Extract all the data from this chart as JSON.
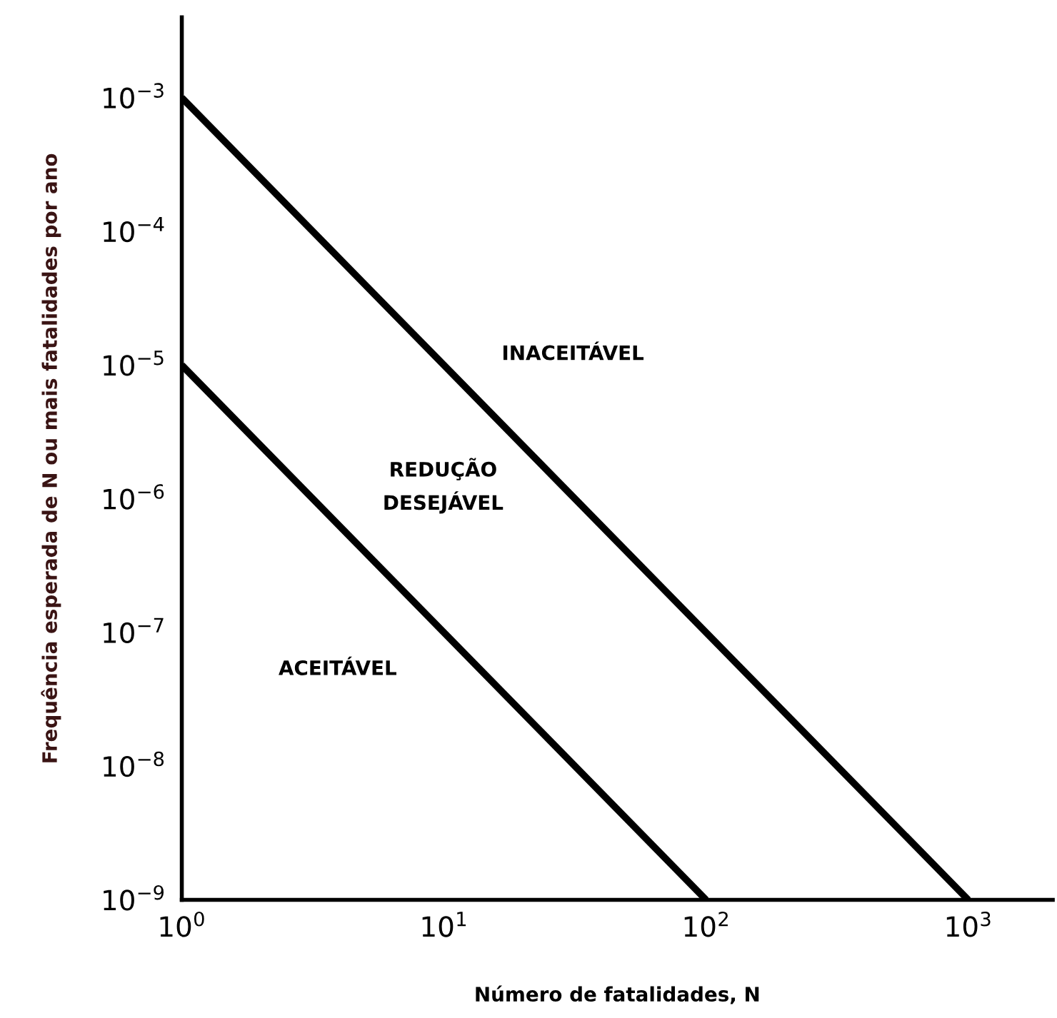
{
  "chart_data": {
    "type": "line",
    "xlabel": "Número de fatalidades, N",
    "ylabel": "Frequência esperada de N ou mais fatalidades por ano",
    "log": "xy",
    "grid": false,
    "marker": "none",
    "line_style": "solid",
    "series": [
      {
        "color": "#000000",
        "x": [
          1,
          1000
        ],
        "values": [
          0.001,
          1e-09
        ]
      },
      {
        "color": "#000000",
        "x": [
          1,
          100
        ],
        "values": [
          1e-05,
          1e-09
        ]
      }
    ],
    "xlim": [
      1,
      2100
    ],
    "ylim": [
      1e-09,
      0.004
    ],
    "xticks": [
      {
        "value": 1,
        "label": "10$^{0}$"
      },
      {
        "value": 10,
        "label": "10$^{1}$"
      },
      {
        "value": 100,
        "label": "10$^{2}$"
      },
      {
        "value": 1000,
        "label": "10$^{3}$"
      }
    ],
    "yticks": [
      {
        "value": 1e-09,
        "label": "10$^{−9}$"
      },
      {
        "value": 1e-08,
        "label": "10$^{−8}$"
      },
      {
        "value": 1e-07,
        "label": "10$^{−7}$"
      },
      {
        "value": 1e-06,
        "label": "10$^{−6}$"
      },
      {
        "value": 1e-05,
        "label": "10$^{−5}$"
      },
      {
        "value": 0.0001,
        "label": "10$^{−4}$"
      },
      {
        "value": 0.001,
        "label": "10$^{−3}$"
      }
    ],
    "annotations": [
      "INACEITÁVEL",
      "REDUÇÃO\nDESEJÁVEL",
      "ACEITÁVEL"
    ]
  }
}
